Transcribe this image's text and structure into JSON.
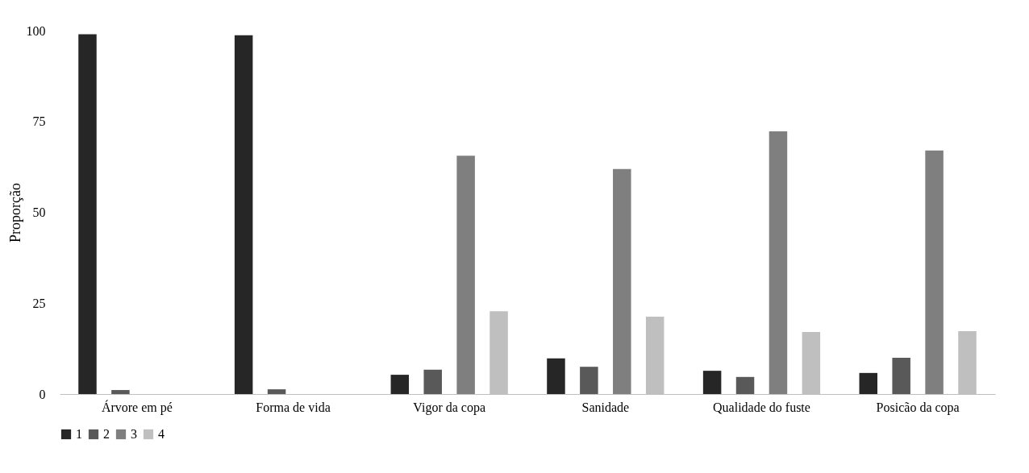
{
  "chart_data": {
    "type": "bar",
    "ylabel": "Proporção",
    "categories": [
      "Árvore em pé",
      "Forma de vida",
      "Vigor da copa",
      "Sanidade",
      "Qualidade do fuste",
      "Posicão da copa"
    ],
    "series": [
      {
        "name": "1",
        "color": "#262626",
        "values": [
          99,
          98.7,
          5.3,
          9.8,
          6.4,
          5.8
        ]
      },
      {
        "name": "2",
        "color": "#595959",
        "values": [
          1.1,
          1.3,
          6.7,
          7.5,
          4.7,
          10
        ]
      },
      {
        "name": "3",
        "color": "#7f7f7f",
        "values": [
          0,
          0,
          65.6,
          61.9,
          72.3,
          67
        ]
      },
      {
        "name": "4",
        "color": "#bfbfbf",
        "values": [
          0,
          0,
          22.8,
          21.3,
          17.1,
          17.3
        ]
      }
    ],
    "ylim": [
      0,
      100
    ],
    "yticks": [
      0,
      25,
      50,
      75,
      100
    ],
    "grid": false,
    "legend": "bottom"
  }
}
